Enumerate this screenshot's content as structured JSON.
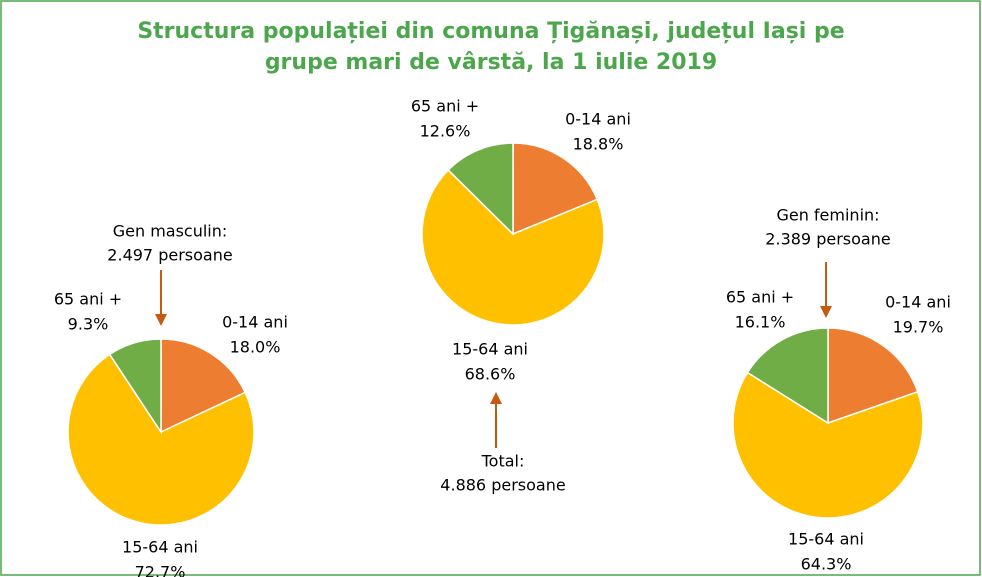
{
  "title": [
    "Structura populației din comuna Țigănași, județul Iași pe",
    "grupe mari de vârstă, la 1 iulie 2019"
  ],
  "chart_data": [
    {
      "type": "pie",
      "categories": [
        "0-14 ani",
        "15-64 ani",
        "65 ani +"
      ],
      "values": [
        18.0,
        72.7,
        9.3
      ],
      "value_labels": [
        "18.0%",
        "72.7%",
        "9.3%"
      ],
      "colors": [
        "#ED7D31",
        "#FFC000",
        "#70AD47"
      ],
      "annotation": [
        "Gen masculin:",
        "2.497 persoane"
      ],
      "annotation_color": "#C55A11"
    },
    {
      "type": "pie",
      "categories": [
        "0-14 ani",
        "15-64 ani",
        "65 ani +"
      ],
      "values": [
        18.8,
        68.6,
        12.6
      ],
      "value_labels": [
        "18.8%",
        "68.6%",
        "12.6%"
      ],
      "colors": [
        "#ED7D31",
        "#FFC000",
        "#70AD47"
      ],
      "annotation": [
        "Total:",
        "4.886 persoane"
      ],
      "annotation_color": "#4CA64C"
    },
    {
      "type": "pie",
      "categories": [
        "0-14 ani",
        "15-64 ani",
        "65 ani +"
      ],
      "values": [
        19.7,
        64.3,
        16.1
      ],
      "value_labels": [
        "19.7%",
        "64.3%",
        "16.1%"
      ],
      "colors": [
        "#ED7D31",
        "#FFC000",
        "#70AD47"
      ],
      "annotation": [
        "Gen feminin:",
        "2.389 persoane"
      ],
      "annotation_color": "#C55A11"
    }
  ]
}
